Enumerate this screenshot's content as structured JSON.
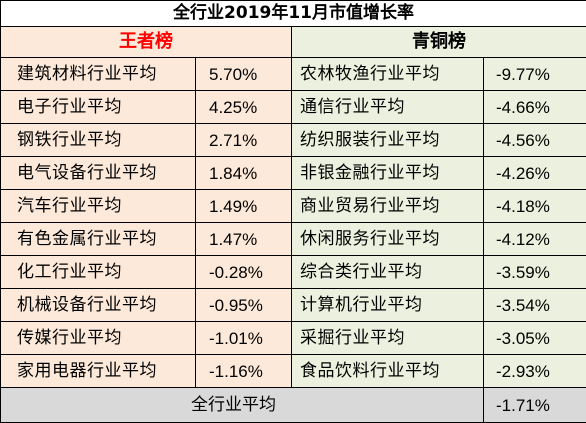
{
  "title": "全行业2019年11月市值增长率",
  "left_header": "王者榜",
  "right_header": "青铜榜",
  "rows": [
    {
      "left_name": "建筑材料行业平均",
      "left_value": "5.70%",
      "right_name": "农林牧渔行业平均",
      "right_value": "-9.77%"
    },
    {
      "left_name": "电子行业平均",
      "left_value": "4.25%",
      "right_name": "通信行业平均",
      "right_value": "-4.66%"
    },
    {
      "left_name": "钢铁行业平均",
      "left_value": "2.71%",
      "right_name": "纺织服装行业平均",
      "right_value": "-4.56%"
    },
    {
      "left_name": "电气设备行业平均",
      "left_value": "1.84%",
      "right_name": "非银金融行业平均",
      "right_value": "-4.26%"
    },
    {
      "left_name": "汽车行业平均",
      "left_value": "1.49%",
      "right_name": "商业贸易行业平均",
      "right_value": "-4.18%"
    },
    {
      "left_name": "有色金属行业平均",
      "left_value": "1.47%",
      "right_name": "休闲服务行业平均",
      "right_value": "-4.12%"
    },
    {
      "left_name": "化工行业平均",
      "left_value": "-0.28%",
      "right_name": "综合类行业平均",
      "right_value": "-3.59%"
    },
    {
      "left_name": "机械设备行业平均",
      "left_value": "-0.95%",
      "right_name": "计算机行业平均",
      "right_value": "-3.54%"
    },
    {
      "left_name": "传媒行业平均",
      "left_value": "-1.01%",
      "right_name": "采掘行业平均",
      "right_value": "-3.05%"
    },
    {
      "left_name": "家用电器行业平均",
      "left_value": "-1.16%",
      "right_name": "食品饮料行业平均",
      "right_value": "-2.93%"
    }
  ],
  "total_label": "全行业平均",
  "total_value": "-1.71%",
  "colors": {
    "left_bg": "#fde9d9",
    "right_bg": "#ebf1de",
    "total_bg": "#d9d9d9",
    "left_header_text": "#ff0000"
  }
}
